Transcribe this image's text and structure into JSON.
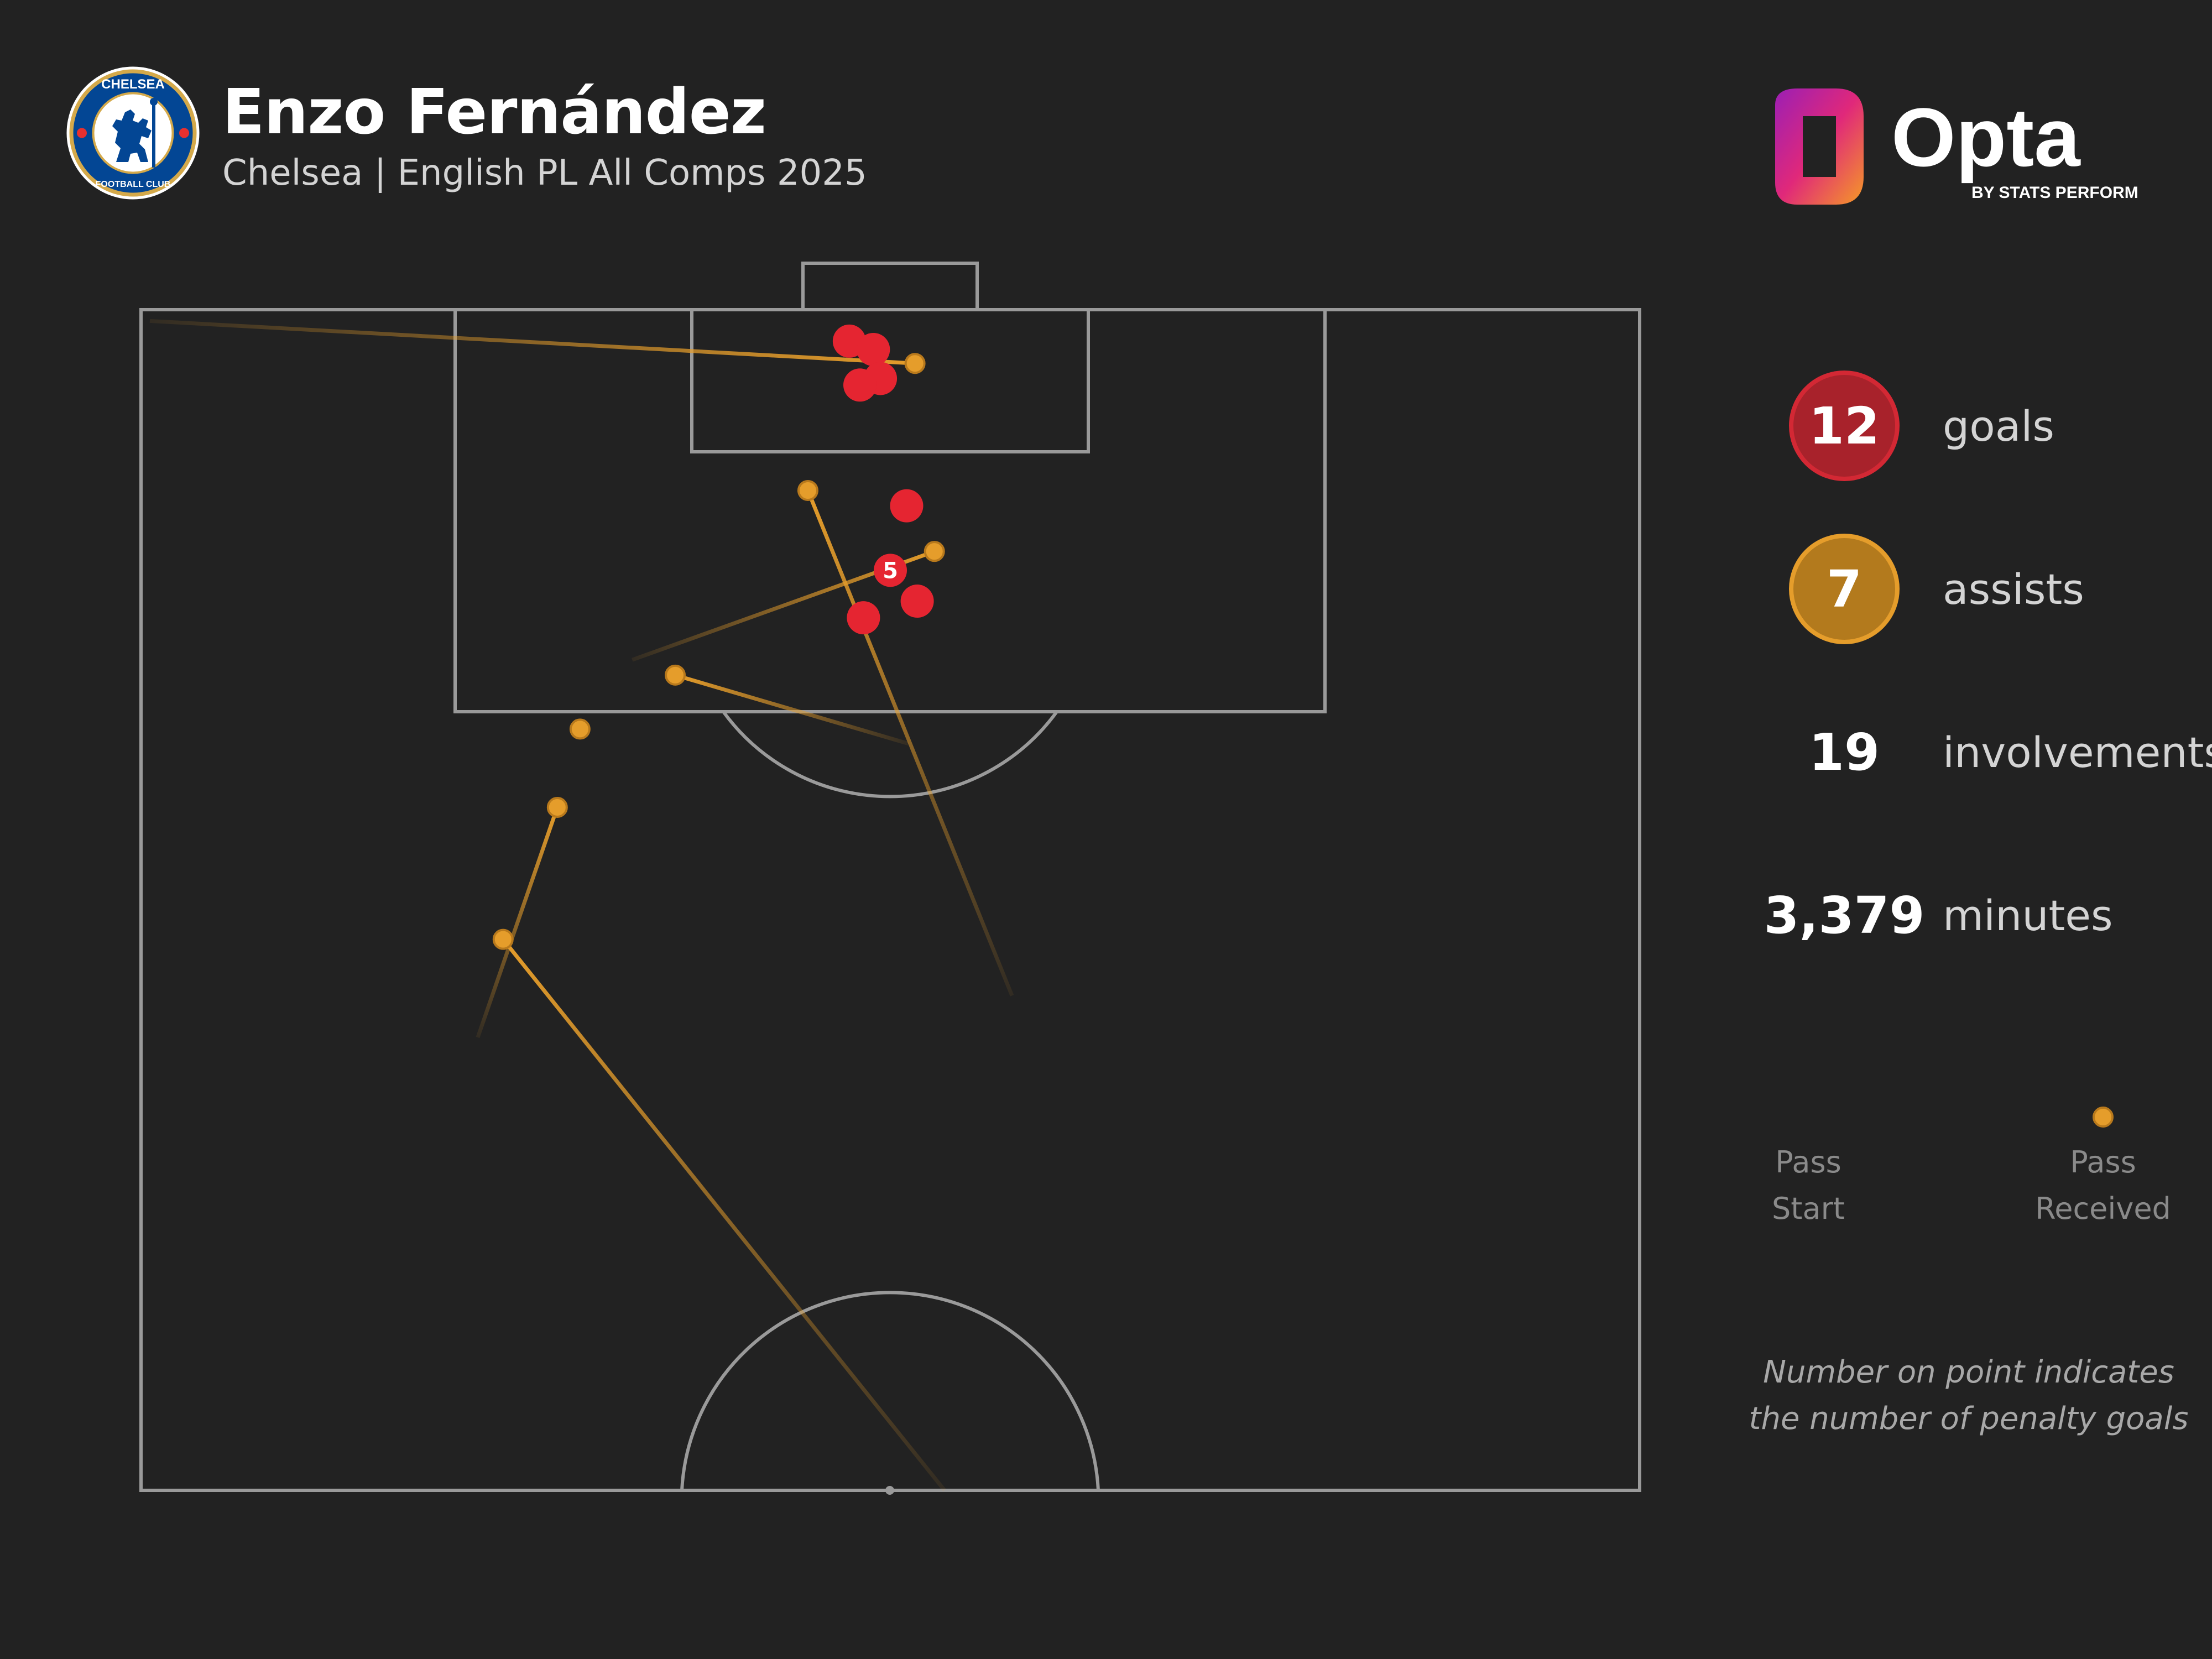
{
  "header": {
    "player_name": "Enzo Fernández",
    "subtitle": "Chelsea | English PL All Comps 2025",
    "club_badge": {
      "icon": "chelsea-crest-icon",
      "text_top": "CHELSEA",
      "text_bottom": "FOOTBALL CLUB",
      "colors": {
        "blue": "#034694",
        "gold": "#d4a94a",
        "red": "#e8302f"
      }
    }
  },
  "brand": {
    "name": "Opta",
    "tagline": "BY STATS PERFORM",
    "gradient": [
      "#9b1fb5",
      "#e0287a",
      "#f59a26"
    ]
  },
  "stats": {
    "goals": {
      "value": "12",
      "label": "goals",
      "color": "#a8222b"
    },
    "assists": {
      "value": "7",
      "label": "assists",
      "color": "#b37a1d"
    },
    "involvements": {
      "value": "19",
      "label": "involvements"
    },
    "minutes": {
      "value": "3,379",
      "label": "minutes"
    }
  },
  "legend": {
    "start_lines": [
      "Pass",
      "Start"
    ],
    "end_lines": [
      "Pass",
      "Received"
    ]
  },
  "footnote_lines": [
    "Number on point indicates",
    "the number of penalty goals"
  ],
  "chart_data": {
    "type": "scatter",
    "title": "Enzo Fernández",
    "subtitle": "Chelsea | English PL All Comps 2025",
    "pitch": {
      "view": "attacking half",
      "units": "metres",
      "width": 68,
      "length": 52.5,
      "goal_at": "top"
    },
    "colors": {
      "goal": "#e52531",
      "assist": "#e59d2b",
      "lines": "#9a9a9a"
    },
    "goals": [
      {
        "x": -1.86,
        "y": 1.4,
        "count": 1
      },
      {
        "x": -0.77,
        "y": 1.77,
        "count": 1
      },
      {
        "x": -0.45,
        "y": 3.06,
        "count": 1
      },
      {
        "x": -1.38,
        "y": 3.35,
        "count": 1
      },
      {
        "x": 0.74,
        "y": 8.72,
        "count": 1
      },
      {
        "x": 0.0,
        "y": 11.59,
        "count": 5,
        "label": "5",
        "penalty": true
      },
      {
        "x": 1.22,
        "y": 12.96,
        "count": 1
      },
      {
        "x": -1.22,
        "y": 13.7,
        "count": 1
      }
    ],
    "assists": [
      {
        "start": {
          "x": -33.6,
          "y": 0.5
        },
        "end": {
          "x": 1.12,
          "y": 2.39
        }
      },
      {
        "start": {
          "x": 5.52,
          "y": 30.5
        },
        "end": {
          "x": -3.74,
          "y": 8.04
        }
      },
      {
        "start": {
          "x": -11.71,
          "y": 15.57
        },
        "end": {
          "x": 2.0,
          "y": 10.75
        }
      },
      {
        "start": {
          "x": 0.83,
          "y": 19.3
        },
        "end": {
          "x": -9.76,
          "y": 16.25
        }
      },
      {
        "x": -14.08,
        "y": 18.65,
        "note": "received point only"
      },
      {
        "start": {
          "x": -18.72,
          "y": 32.36
        },
        "end": {
          "x": -15.11,
          "y": 22.13
        }
      },
      {
        "start": {
          "x": 2.46,
          "y": 52.5
        },
        "end": {
          "x": -17.57,
          "y": 28.0
        }
      }
    ]
  }
}
